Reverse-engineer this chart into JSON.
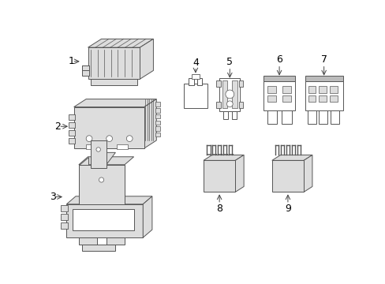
{
  "background_color": "#ffffff",
  "line_color": "#555555",
  "fill_color": "#ffffff",
  "gray_fill": "#bbbbbb",
  "light_gray": "#dddddd",
  "mid_gray": "#999999",
  "label_fontsize": 9,
  "arrow_color": "#444444"
}
